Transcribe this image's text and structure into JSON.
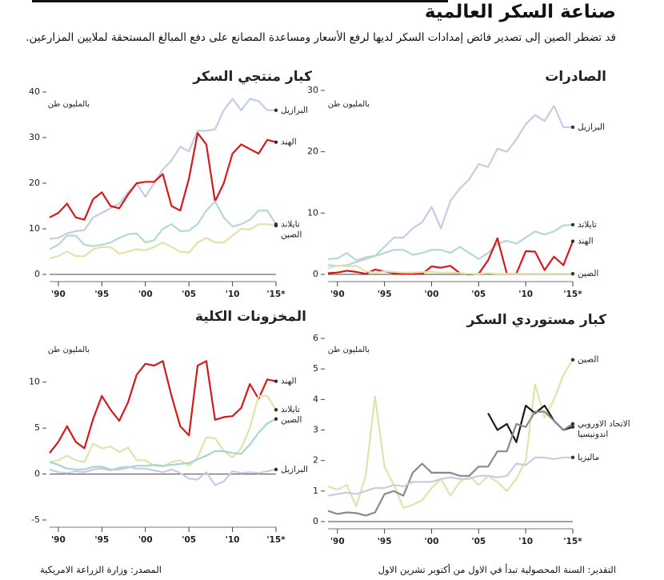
{
  "title": "صناعة السكر العالمية",
  "subtitle": "قد تضطر الصين إلى تصدير فائض إمدادات السكر لديها لرفع الأسعار ومساعدة المصانع على دفع المبالغ المستحقة لملايين المزارعين.",
  "source": "المصدر: وزارة الزراعة الامريكية",
  "note": "التقدير: السنة المحصولية تبدأ في الاول من أكتوبر تشرين الاول",
  "chart_data": [
    {
      "type": "line",
      "title": "كبار منتجي السكر",
      "y_label": "بالمليون طن",
      "x": [
        1989,
        1990,
        1991,
        1992,
        1993,
        1994,
        1995,
        1996,
        1997,
        1998,
        1999,
        2000,
        2001,
        2002,
        2003,
        2004,
        2005,
        2006,
        2007,
        2008,
        2009,
        2010,
        2011,
        2012,
        2013,
        2014,
        2015
      ],
      "xlim": [
        1989,
        2015
      ],
      "xticks": [
        {
          "value": 1990,
          "label": "'90"
        },
        {
          "value": 1995,
          "label": "'95"
        },
        {
          "value": 2000,
          "label": "'00"
        },
        {
          "value": 2005,
          "label": "'05"
        },
        {
          "value": 2010,
          "label": "'10"
        },
        {
          "value": 2015,
          "label": "'15*"
        }
      ],
      "ylim": [
        0,
        40
      ],
      "yticks": [
        0,
        10,
        20,
        30,
        40
      ],
      "series": [
        {
          "name": "البرازيل",
          "color": "#c5cce6",
          "values": [
            7.8,
            8,
            9,
            9.5,
            9.7,
            12.5,
            13.5,
            14.5,
            15.5,
            18,
            20,
            17,
            20,
            23,
            25,
            28,
            27,
            31.5,
            31.5,
            31.8,
            36,
            38.5,
            36,
            38.5,
            38,
            36,
            36
          ]
        },
        {
          "name": "الهند",
          "color": "#d7191c",
          "values": [
            12.5,
            13.5,
            15.5,
            12.5,
            12,
            16.5,
            18,
            15,
            14.5,
            17.5,
            20,
            20.3,
            20.3,
            22,
            15,
            14,
            21,
            31,
            28.5,
            16,
            20,
            26.5,
            28.5,
            27.5,
            26.5,
            29.5,
            29
          ]
        },
        {
          "name": "تايلاند",
          "color": "#b3d9d0",
          "values": [
            5.5,
            6.5,
            8.5,
            8.5,
            6.5,
            6.2,
            6.5,
            7,
            8,
            8.8,
            9,
            7,
            7.5,
            10,
            11,
            9.5,
            9.6,
            11,
            14,
            16,
            12.5,
            10.5,
            11,
            12,
            14,
            14,
            11
          ]
        },
        {
          "name": "الصين",
          "color": "#dfe4ad",
          "values": [
            3.5,
            4,
            5,
            4,
            4,
            5.5,
            6,
            6,
            4.5,
            5,
            5.5,
            5.3,
            6,
            7,
            6,
            5,
            4.8,
            7,
            8,
            7,
            7,
            8.5,
            10,
            9.8,
            11,
            11,
            10.7
          ]
        }
      ]
    },
    {
      "type": "line",
      "title": "الصادرات",
      "y_label": "بالمليون طن",
      "x": [
        1989,
        1990,
        1991,
        1992,
        1993,
        1994,
        1995,
        1996,
        1997,
        1998,
        1999,
        2000,
        2001,
        2002,
        2003,
        2004,
        2005,
        2006,
        2007,
        2008,
        2009,
        2010,
        2011,
        2012,
        2013,
        2014,
        2015
      ],
      "xlim": [
        1989,
        2015
      ],
      "xticks": [
        {
          "value": 1990,
          "label": "'90"
        },
        {
          "value": 1995,
          "label": "'95"
        },
        {
          "value": 2000,
          "label": "'00"
        },
        {
          "value": 2005,
          "label": "'05"
        },
        {
          "value": 2010,
          "label": "'10"
        },
        {
          "value": 2015,
          "label": "'15*"
        }
      ],
      "ylim": [
        0,
        30
      ],
      "yticks": [
        0,
        10,
        20,
        30
      ],
      "series": [
        {
          "name": "البرازيل",
          "color": "#c5cce6",
          "values": [
            1.5,
            1.4,
            1.5,
            2,
            2.5,
            3,
            4.5,
            6,
            6,
            7.5,
            8.5,
            11,
            7.5,
            12,
            14,
            15.5,
            18,
            17.5,
            20.5,
            20,
            22,
            24.5,
            26,
            25,
            27.5,
            24,
            24
          ]
        },
        {
          "name": "تايلاند",
          "color": "#b3d9d0",
          "values": [
            2.5,
            2.6,
            3.5,
            2.3,
            2.8,
            3,
            3.5,
            4,
            4,
            3.2,
            3.5,
            4,
            4,
            3.5,
            4.5,
            3.5,
            2.5,
            3.5,
            5,
            5.5,
            5,
            6,
            7,
            6.5,
            7,
            8,
            8.1
          ]
        },
        {
          "name": "الهند",
          "color": "#d7191c",
          "values": [
            0.2,
            0.3,
            0.6,
            0.4,
            0.1,
            0.8,
            0.5,
            0.2,
            0.1,
            0.1,
            0.1,
            1.3,
            1.1,
            1.4,
            0.2,
            0,
            0.1,
            2.3,
            5.9,
            0.1,
            0.1,
            3.8,
            3.7,
            0.7,
            2.9,
            1.5,
            5.4
          ]
        },
        {
          "name": "الصين",
          "color": "#dfe4ad",
          "values": [
            1,
            1.4,
            1.3,
            1.4,
            0.5,
            0.3,
            0.5,
            0.4,
            0.3,
            0.3,
            0.4,
            0.4,
            0.3,
            0.3,
            0.2,
            0.1,
            0.1,
            0.2,
            0.1,
            0.1,
            0.1,
            0.1,
            0.1,
            0.1,
            0.1,
            0.1,
            0.1
          ]
        }
      ]
    },
    {
      "type": "line",
      "title": "المخزونات الكلية",
      "y_label": "بالمليون طن",
      "x": [
        1989,
        1990,
        1991,
        1992,
        1993,
        1994,
        1995,
        1996,
        1997,
        1998,
        1999,
        2000,
        2001,
        2002,
        2003,
        2004,
        2005,
        2006,
        2007,
        2008,
        2009,
        2010,
        2011,
        2012,
        2013,
        2014,
        2015
      ],
      "xlim": [
        1989,
        2015
      ],
      "xticks": [
        {
          "value": 1990,
          "label": "'90"
        },
        {
          "value": 1995,
          "label": "'95"
        },
        {
          "value": 2000,
          "label": "'00"
        },
        {
          "value": 2005,
          "label": "'05"
        },
        {
          "value": 2010,
          "label": "'10"
        },
        {
          "value": 2015,
          "label": "'15*"
        }
      ],
      "ylim": [
        -5,
        12.5
      ],
      "yticks": [
        -5,
        0,
        5,
        10
      ],
      "series": [
        {
          "name": "الهند",
          "color": "#d7191c",
          "values": [
            2.3,
            3.5,
            5.2,
            3.5,
            2.8,
            6,
            8.5,
            7,
            5.8,
            7.8,
            10.8,
            12,
            11.8,
            12.3,
            8.5,
            5.2,
            4.2,
            11.8,
            12.3,
            5.9,
            6.2,
            6.3,
            7.2,
            9.8,
            8.2,
            10.3,
            10.1
          ]
        },
        {
          "name": "تايلاند",
          "color": "#dfe4ad",
          "values": [
            1.3,
            1.5,
            2,
            1.5,
            1.3,
            3.3,
            2.8,
            3,
            2.4,
            2.9,
            1.5,
            1.5,
            0.9,
            0.8,
            1.3,
            1.5,
            0.9,
            1.8,
            4,
            3.9,
            2.5,
            1.8,
            2.8,
            5,
            8.5,
            8.5,
            7
          ]
        },
        {
          "name": "الصين",
          "color": "#a9d6cb",
          "values": [
            1.3,
            1,
            0.6,
            0.5,
            0.5,
            0.8,
            0.8,
            0.5,
            0.5,
            0.7,
            0.9,
            0.9,
            1,
            0.9,
            1,
            1.1,
            1.2,
            1.6,
            2,
            2.5,
            2.5,
            2.3,
            2.2,
            3.2,
            4.5,
            5.5,
            6
          ]
        },
        {
          "name": "البرازيل",
          "color": "#c5cce6",
          "values": [
            0.5,
            0.2,
            0.1,
            0.3,
            0.2,
            0.5,
            0.6,
            0.4,
            0.7,
            0.8,
            0.6,
            0.6,
            0.4,
            0.2,
            0.5,
            0.1,
            -0.5,
            -0.6,
            0.2,
            -1.2,
            -0.8,
            0.3,
            0.1,
            0.2,
            0.1,
            0.3,
            0.5
          ]
        }
      ]
    },
    {
      "type": "line",
      "title": "كبار مستوردي السكر",
      "y_label": "بالمليون طن",
      "x": [
        1989,
        1990,
        1991,
        1992,
        1993,
        1994,
        1995,
        1996,
        1997,
        1998,
        1999,
        2000,
        2001,
        2002,
        2003,
        2004,
        2005,
        2006,
        2007,
        2008,
        2009,
        2010,
        2011,
        2012,
        2013,
        2014,
        2015
      ],
      "xlim": [
        1989,
        2015
      ],
      "xticks": [
        {
          "value": 1990,
          "label": "'90"
        },
        {
          "value": 1995,
          "label": "'95"
        },
        {
          "value": 2000,
          "label": "'00"
        },
        {
          "value": 2005,
          "label": "'05"
        },
        {
          "value": 2010,
          "label": "'10"
        },
        {
          "value": 2015,
          "label": "'15*"
        }
      ],
      "ylim": [
        0,
        6
      ],
      "yticks": [
        0,
        1,
        2,
        3,
        4,
        5,
        6
      ],
      "series": [
        {
          "name": "الصين",
          "color": "#dfe4ad",
          "values": [
            1.15,
            1.05,
            1.2,
            0.5,
            1.5,
            4.1,
            1.8,
            1.2,
            0.45,
            0.55,
            0.7,
            1.1,
            1.4,
            0.85,
            1.3,
            1.5,
            1.2,
            1.5,
            1.3,
            1.0,
            1.4,
            2.0,
            4.5,
            3.4,
            4.0,
            4.8,
            5.3
          ]
        },
        {
          "name": "اندونيسيا",
          "color": "#1a1a1a",
          "values": [
            null,
            null,
            null,
            null,
            null,
            null,
            null,
            null,
            null,
            null,
            null,
            null,
            null,
            null,
            null,
            null,
            null,
            3.55,
            3.0,
            3.2,
            2.6,
            3.8,
            3.55,
            3.8,
            3.3,
            3.0,
            3.1
          ]
        },
        {
          "name": "الاتحاد الاوروبي",
          "color": "#8a8a8a",
          "values": [
            0.35,
            0.25,
            0.3,
            0.28,
            0.2,
            0.3,
            0.9,
            1.0,
            0.85,
            1.6,
            1.9,
            1.6,
            1.6,
            1.6,
            1.5,
            1.5,
            1.8,
            1.8,
            2.3,
            2.3,
            3.2,
            3.1,
            3.6,
            3.6,
            3.3,
            3.0,
            3.2
          ]
        },
        {
          "name": "ماليزيا",
          "color": "#c9cbe0",
          "values": [
            0.85,
            0.9,
            0.95,
            0.9,
            1.0,
            1.1,
            1.1,
            1.2,
            1.15,
            1.3,
            1.3,
            1.3,
            1.4,
            1.45,
            1.4,
            1.4,
            1.5,
            1.5,
            1.45,
            1.5,
            1.9,
            1.85,
            2.1,
            2.1,
            2.05,
            2.1,
            2.1
          ]
        }
      ]
    }
  ]
}
